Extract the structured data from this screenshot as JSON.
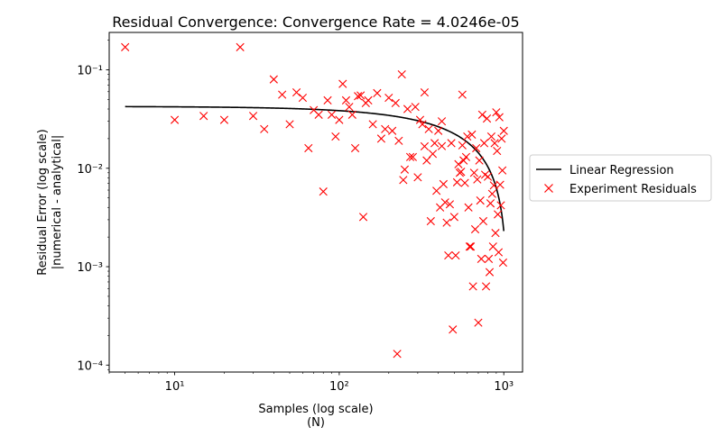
{
  "chart_data": {
    "type": "scatter",
    "title": "Residual Convergence: Convergence Rate = 4.0246e-05",
    "xlabel_line1": "Samples (log scale)",
    "xlabel_line2": "(N)",
    "ylabel_line1": "Residual Error (log scale)",
    "ylabel_line2": "|numerical - analytical|",
    "xscale": "log",
    "yscale": "log",
    "xlim": [
      4,
      1300
    ],
    "ylim": [
      8.5e-05,
      0.24
    ],
    "grid": false,
    "legend_position": "outside-right",
    "x_ticks": [
      {
        "value": 10,
        "label": "10¹"
      },
      {
        "value": 100,
        "label": "10²"
      },
      {
        "value": 1000,
        "label": "10³"
      }
    ],
    "y_ticks": [
      {
        "value": 0.0001,
        "label": "10⁻⁴"
      },
      {
        "value": 0.001,
        "label": "10⁻³"
      },
      {
        "value": 0.01,
        "label": "10⁻²"
      },
      {
        "value": 0.1,
        "label": "10⁻¹"
      }
    ],
    "series": [
      {
        "name": "Linear Regression",
        "kind": "line",
        "color": "#000000",
        "intercept": 0.0425,
        "slope": -4.02e-05,
        "x_start": 5,
        "x_end": 1000
      },
      {
        "name": "Experiment Residuals",
        "kind": "scatter",
        "marker": "x",
        "color": "#ff0000",
        "x": [
          5,
          10,
          15,
          20,
          25,
          30,
          35,
          40,
          45,
          50,
          55,
          60,
          65,
          70,
          75,
          80,
          85,
          90,
          95,
          100,
          105,
          110,
          115,
          120,
          125,
          130,
          135,
          140,
          145,
          150,
          160,
          170,
          180,
          190,
          200,
          210,
          220,
          230,
          240,
          250,
          260,
          270,
          280,
          290,
          300,
          310,
          320,
          330,
          340,
          350,
          360,
          370,
          380,
          390,
          400,
          410,
          420,
          430,
          440,
          450,
          460,
          470,
          480,
          490,
          500,
          510,
          520,
          530,
          540,
          550,
          560,
          570,
          580,
          590,
          600,
          610,
          620,
          630,
          640,
          650,
          660,
          670,
          680,
          690,
          700,
          710,
          720,
          730,
          740,
          750,
          760,
          770,
          780,
          790,
          800,
          810,
          820,
          830,
          840,
          850,
          860,
          870,
          880,
          890,
          900,
          910,
          920,
          930,
          940,
          950,
          960,
          970,
          980,
          990,
          1000,
          225,
          245,
          330,
          420,
          560
        ],
        "y": [
          0.17,
          0.031,
          0.034,
          0.031,
          0.17,
          0.034,
          0.025,
          0.08,
          0.056,
          0.028,
          0.059,
          0.052,
          0.016,
          0.039,
          0.035,
          0.0058,
          0.049,
          0.035,
          0.021,
          0.031,
          0.072,
          0.049,
          0.042,
          0.035,
          0.016,
          0.054,
          0.055,
          0.0032,
          0.046,
          0.049,
          0.028,
          0.058,
          0.02,
          0.025,
          0.052,
          0.024,
          0.046,
          0.019,
          0.09,
          0.0097,
          0.04,
          0.013,
          0.013,
          0.042,
          0.0081,
          0.031,
          0.028,
          0.059,
          0.012,
          0.025,
          0.0029,
          0.014,
          0.018,
          0.0059,
          0.024,
          0.004,
          0.03,
          0.0069,
          0.0045,
          0.0028,
          0.0013,
          0.0043,
          0.018,
          0.00023,
          0.0032,
          0.0013,
          0.0072,
          0.011,
          0.009,
          0.0092,
          0.056,
          0.012,
          0.0071,
          0.013,
          0.021,
          0.004,
          0.0016,
          0.0016,
          0.022,
          0.00063,
          0.009,
          0.0024,
          0.016,
          0.0077,
          0.00027,
          0.012,
          0.0047,
          0.0012,
          0.035,
          0.0029,
          0.018,
          0.0086,
          0.00063,
          0.032,
          0.0082,
          0.0012,
          0.00088,
          0.0044,
          0.021,
          0.0055,
          0.0016,
          0.0067,
          0.018,
          0.0022,
          0.037,
          0.015,
          0.0034,
          0.0014,
          0.033,
          0.0068,
          0.0042,
          0.02,
          0.0095,
          0.0011,
          0.024,
          0.00013,
          0.0076,
          0.0167,
          0.0168,
          0.0171
        ]
      }
    ]
  }
}
